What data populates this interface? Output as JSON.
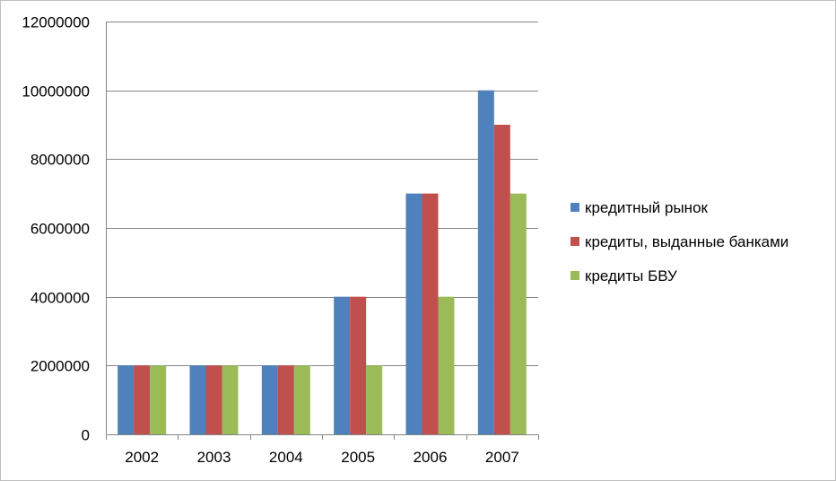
{
  "chart_data": {
    "type": "bar",
    "title": "",
    "xlabel": "",
    "ylabel": "",
    "categories": [
      "2002",
      "2003",
      "2004",
      "2005",
      "2006",
      "2007"
    ],
    "series": [
      {
        "name": "кредитный рынок",
        "color": "#4f81bd",
        "values": [
          2000000,
          2000000,
          2000000,
          4000000,
          7000000,
          10000000
        ]
      },
      {
        "name": "кредиты, выданные банками",
        "color": "#c0504d",
        "values": [
          2000000,
          2000000,
          2000000,
          4000000,
          7000000,
          9000000
        ]
      },
      {
        "name": "кредиты БВУ",
        "color": "#9bbb59",
        "values": [
          2000000,
          2000000,
          2000000,
          2000000,
          4000000,
          7000000
        ]
      }
    ],
    "ylim": [
      0,
      12000000
    ],
    "yticks": [
      "0",
      "2000000",
      "4000000",
      "6000000",
      "8000000",
      "10000000",
      "12000000"
    ],
    "grid": true,
    "legend_position": "right"
  }
}
